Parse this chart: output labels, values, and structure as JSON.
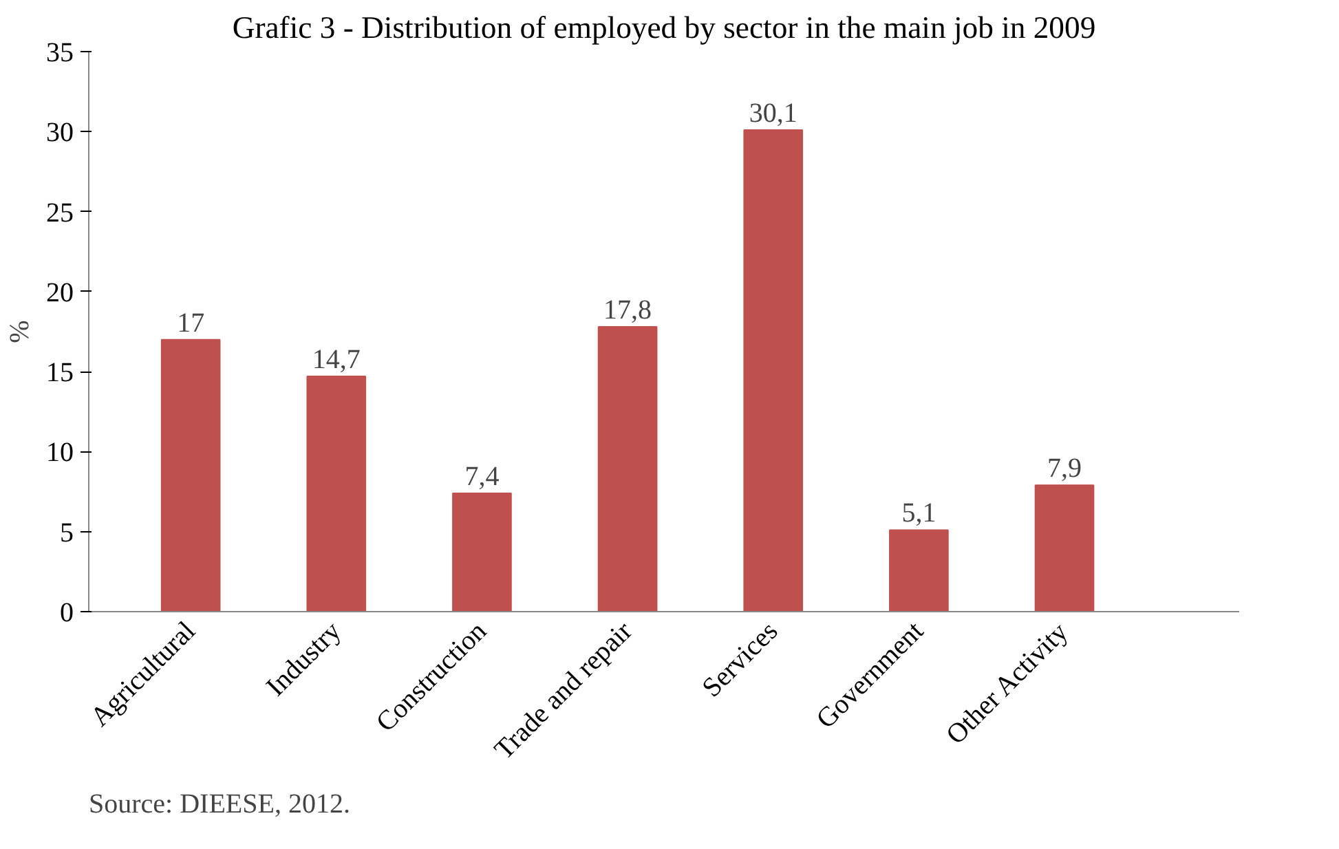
{
  "chart_data": {
    "type": "bar",
    "title": "Grafic 3 - Distribution of employed by sector in the main job in 2009",
    "ylabel": "%",
    "categories": [
      "Agricultural",
      "Industry",
      "Construction",
      "Trade and repair",
      "Services",
      "Government",
      "Other Activity"
    ],
    "values": [
      17,
      14.7,
      7.4,
      17.8,
      30.1,
      5.1,
      7.9
    ],
    "value_labels": [
      "17",
      "14,7",
      "7,4",
      "17,8",
      "30,1",
      "5,1",
      "7,9"
    ],
    "color": "#c0504d",
    "ylim": [
      0,
      35
    ],
    "yticks": [
      0,
      5,
      10,
      15,
      20,
      25,
      30,
      35
    ],
    "grid": false,
    "annotations": [
      "Source: DIEESE, 2012."
    ]
  }
}
